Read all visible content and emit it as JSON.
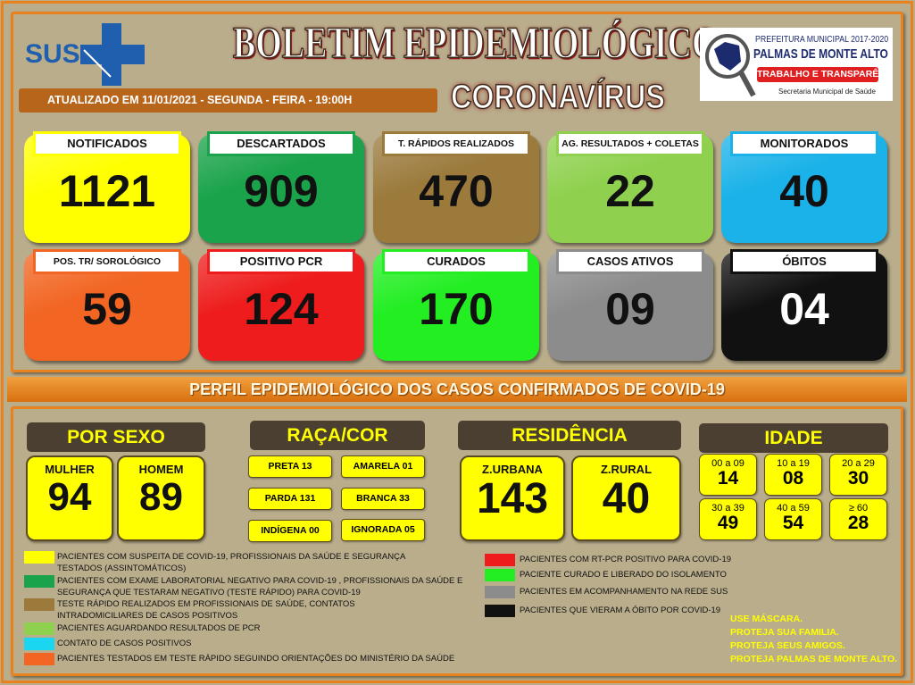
{
  "header": {
    "logo_sus": "SUS",
    "title": "BOLETIM EPIDEMIOLÓGICO",
    "subtitle": "CORONAVÍRUS",
    "updated": "ATUALIZADO EM 11/01/2021  - SEGUNDA - FEIRA -  19:00H",
    "municipal_logo": {
      "line1": "PREFEITURA MUNICIPAL 2017-2020",
      "line2": "PALMAS DE MONTE ALTO",
      "line3": "TRABALHO E TRANSPARÊNCIA",
      "line4": "Secretaria Municipal de Saúde"
    }
  },
  "cards": [
    {
      "label": "NOTIFICADOS",
      "value": "1121",
      "color": "#ffff00",
      "border": "#ffff00"
    },
    {
      "label": "DESCARTADOS",
      "value": "909",
      "color": "#1aa34a",
      "border": "#1aa34a"
    },
    {
      "label": "T. RÁPIDOS REALIZADOS",
      "value": "470",
      "color": "#9b7a3c",
      "border": "#9b7a3c"
    },
    {
      "label": "AG. RESULTADOS  + COLETAS",
      "value": "22",
      "color": "#8fd14f",
      "border": "#8fd14f"
    },
    {
      "label": "MONITORADOS",
      "value": "40",
      "color": "#1ab2e8",
      "border": "#1ab2e8"
    },
    {
      "label": "POS. TR/ SOROLÓGICO",
      "value": "59",
      "color": "#f26522",
      "border": "#f26522"
    },
    {
      "label": "POSITIVO PCR",
      "value": "124",
      "color": "#ee1c1c",
      "border": "#ee1c1c"
    },
    {
      "label": "CURADOS",
      "value": "170",
      "color": "#22ee22",
      "border": "#22ee22"
    },
    {
      "label": "CASOS ATIVOS",
      "value": "09",
      "color": "#8c8c8c",
      "border": "#8c8c8c"
    },
    {
      "label": "ÓBITOS",
      "value": "04",
      "color": "#111111",
      "border": "#111111"
    }
  ],
  "section_title": "PERFIL EPIDEMIOLÓGICO DOS CASOS CONFIRMADOS DE COVID-19",
  "sexo": {
    "title": "POR SEXO",
    "items": [
      {
        "label": "MULHER",
        "value": "94"
      },
      {
        "label": "HOMEM",
        "value": "89"
      }
    ]
  },
  "raca": {
    "title": "RAÇA/COR",
    "items": [
      "PRETA 13",
      "AMARELA 01",
      "PARDA 131",
      "BRANCA 33",
      "INDÍGENA 00",
      "IGNORADA 05"
    ]
  },
  "residencia": {
    "title": "RESIDÊNCIA",
    "items": [
      {
        "label": "Z.URBANA",
        "value": "143"
      },
      {
        "label": "Z.RURAL",
        "value": "40"
      }
    ]
  },
  "idade": {
    "title": "IDADE",
    "items": [
      {
        "label": "00 a 09",
        "value": "14"
      },
      {
        "label": "10 a 19",
        "value": "08"
      },
      {
        "label": "20 a 29",
        "value": "30"
      },
      {
        "label": "30 a 39",
        "value": "49"
      },
      {
        "label": "40 a 59",
        "value": "54"
      },
      {
        "label": "≥ 60",
        "value": "28"
      }
    ]
  },
  "legend_left": [
    {
      "color": "#ffff00",
      "text": "PACIENTES  COM  SUSPEITA DE COVID-19, PROFISSIONAIS  DA SAÚDE  E SEGURANÇA",
      "text2": "TESTADOS  (ASSINTOMÁTICOS)"
    },
    {
      "color": "#1aa34a",
      "text": "PACIENTES  COM  EXAME LABORATORIAL  NEGATIVO  PARA COVID-19 , PROFISSIONAIS  DA SAÚDE  E",
      "text2": "SEGURANÇA   QUE TESTARAM  NEGATIVO (TESTE  RÁPIDO) PARA COVID-19"
    },
    {
      "color": "#9b7a3c",
      "text": "TESTE  RÁPIDO REALIZADOS EM PROFISSIONAIS  DE SAÚDE,  CONTATOS",
      "text2": " INTRADOMICILIARES  DE CASOS  POSITIVOS"
    },
    {
      "color": "#8fd14f",
      "text": "PACIENTES   AGUARDANDO RESULTADOS   DE PCR",
      "text2": ""
    },
    {
      "color": "#1ad6f0",
      "text": "CONTATO  DE CASOS  POSITIVOS",
      "text2": ""
    },
    {
      "color": "#f26522",
      "text": "PACIENTES  TESTADOS  EM TESTE  RÁPIDO SEGUINDO  ORIENTAÇÕES   DO MINISTÉRIO  DA SAÚDE",
      "text2": ""
    }
  ],
  "legend_right": [
    {
      "color": "#ee1c1c",
      "text": "PACIENTES  COM RT-PCR  POSITIVO  PARA COVID-19"
    },
    {
      "color": "#22ee22",
      "text": "PACIENTE  CURADO E LIBERADO  DO ISOLAMENTO"
    },
    {
      "color": "#8c8c8c",
      "text": "PACIENTES   EM ACOMPANHAMENTO  NA REDE  SUS"
    },
    {
      "color": "#111111",
      "text": "PACIENTES  QUE  VIERAM A ÓBITO  POR COVID-19"
    }
  ],
  "slogan": [
    "USE MÁSCARA.",
    "PROTEJA SUA FAMILIA.",
    "PROTEJA SEUS AMIGOS.",
    "PROTEJA PALMAS DE MONTE ALTO."
  ]
}
